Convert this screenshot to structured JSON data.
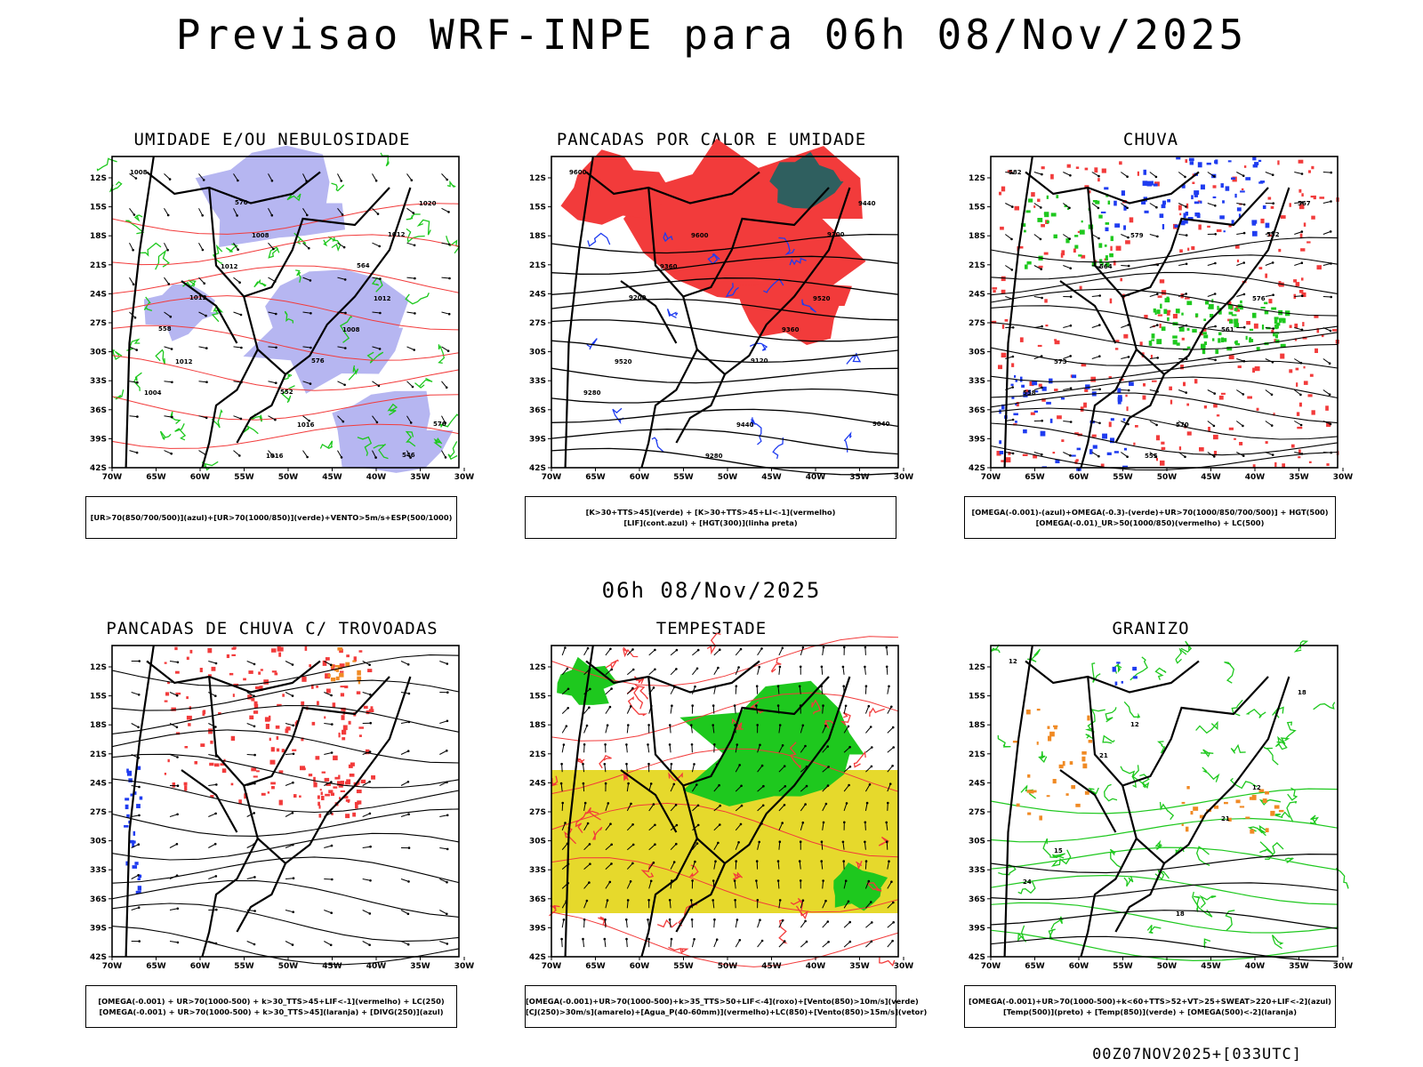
{
  "header": {
    "title": "Previsao WRF-INPE  para 06h 08/Nov/2025",
    "subtitle": "06h 08/Nov/2025",
    "footer": "00Z07NOV2025+[033UTC]"
  },
  "axes": {
    "lat_labels": [
      "12S",
      "15S",
      "18S",
      "21S",
      "24S",
      "27S",
      "30S",
      "33S",
      "36S",
      "39S",
      "42S"
    ],
    "lon_labels": [
      "70W",
      "65W",
      "60W",
      "55W",
      "50W",
      "45W",
      "40W",
      "35W",
      "30W"
    ]
  },
  "colors": {
    "red": "#f23b3b",
    "green": "#1ec81e",
    "blue": "#1f3cf0",
    "lavender": "#a9a9ee",
    "yellow": "#e6d92c",
    "orange": "#f08a24",
    "teal": "#2f5f5f"
  },
  "panels": [
    {
      "id": "umidade",
      "title": "UMIDADE E/OU NEBULOSIDADE",
      "legend": [
        "[UR>70(850/700/500)](azul)+[UR>70(1000/850)](verde)+VENTO>5m/s+ESP(500/1000)"
      ],
      "contour_labels": [
        "1008",
        "1008",
        "1012",
        "1012",
        "1016",
        "1020",
        "1012",
        "1008",
        "1004",
        "1016",
        "1012",
        "1012",
        "576",
        "576",
        "570",
        "564",
        "558",
        "552",
        "546"
      ]
    },
    {
      "id": "pancadas-calor",
      "title": "PANCADAS POR CALOR E UMIDADE",
      "legend": [
        "[K>30+TTS>45](verde)  +  [K>30+TTS>45+LI<-1](vermelho)",
        "[LIF](cont.azul)  +  [HGT(300)](linha preta)"
      ],
      "contour_labels": [
        "9600",
        "9600",
        "9520",
        "9520",
        "9440",
        "9440",
        "9360",
        "9360",
        "9280",
        "9280",
        "9200",
        "9200",
        "9120",
        "9040"
      ]
    },
    {
      "id": "chuva",
      "title": "CHUVA",
      "legend": [
        "[OMEGA(-0.001)-(azul)+OMEGA(-0.3)-(verde)+UR>70(1000/850/700/500)]  +  HGT(500)",
        "[OMEGA(-0.01)_UR>50(1000/850)(vermelho)  +  LC(500)"
      ],
      "contour_labels": [
        "582",
        "579",
        "576",
        "573",
        "570",
        "567",
        "564",
        "561",
        "558",
        "555",
        "552"
      ]
    },
    {
      "id": "trovoadas",
      "title": "PANCADAS DE CHUVA C/ TROVOADAS",
      "legend": [
        "[OMEGA(-0.001)  +  UR>70(1000-500)  +  k>30_TTS>45+LIF<-1](vermelho)  +  LC(250)",
        "[OMEGA(-0.001)  +  UR>70(1000-500)  +  k>30_TTS>45](laranja)  +  [DIVG(250)](azul)"
      ],
      "contour_labels": []
    },
    {
      "id": "tempestade",
      "title": "TEMPESTADE",
      "legend": [
        "[OMEGA(-0.001)+UR>70(1000-500)+k>35_TTS>50+LIF<-4](roxo)+[Vento(850)>10m/s](verde)",
        "[CJ(250)>30m/s](amarelo)+[Agua_P(40-60mm)](vermelho)+LC(850)+[Vento(850)>15m/s](vetor)"
      ],
      "contour_labels": []
    },
    {
      "id": "granizo",
      "title": "GRANIZO",
      "legend": [
        "[OMEGA(-0.001)+UR>70(1000-500)+k<60+TTS>52+VT>25+SWEAT>220+LIF<-2](azul)",
        "[Temp(500)](preto)  +  [Temp(850)](verde)  +  [OMEGA(500)<-2](laranja)"
      ],
      "contour_labels": [
        "12",
        "12",
        "12",
        "15",
        "18",
        "18",
        "21",
        "21",
        "24"
      ]
    }
  ]
}
